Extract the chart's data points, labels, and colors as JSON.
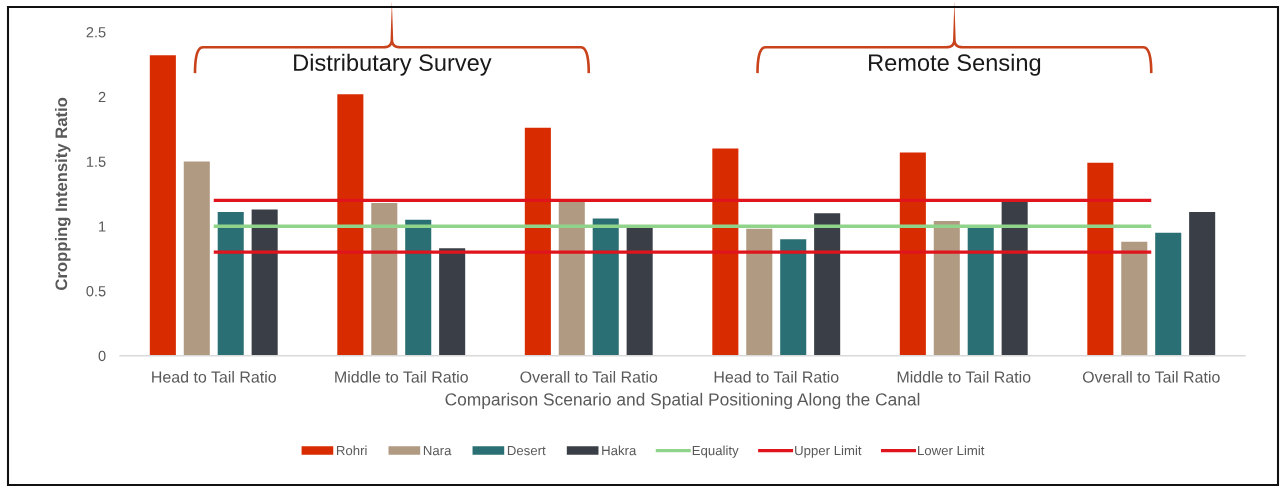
{
  "chart_data": {
    "type": "bar",
    "categories": [
      "Head to Tail Ratio",
      "Middle to Tail Ratio",
      "Overall to Tail Ratio",
      "Head to Tail Ratio",
      "Middle to Tail Ratio",
      "Overall to Tail Ratio"
    ],
    "series": [
      {
        "name": "Rohri",
        "color": "#d92b00",
        "values": [
          2.32,
          2.02,
          1.76,
          1.6,
          1.57,
          1.49
        ]
      },
      {
        "name": "Nara",
        "color": "#b09a82",
        "values": [
          1.5,
          1.18,
          1.19,
          0.98,
          1.04,
          0.88
        ]
      },
      {
        "name": "Desert",
        "color": "#2a6f73",
        "values": [
          1.11,
          1.05,
          1.06,
          0.9,
          0.99,
          0.95
        ]
      },
      {
        "name": "Hakra",
        "color": "#3a3f47",
        "values": [
          1.13,
          0.83,
          0.99,
          1.1,
          1.2,
          1.11
        ]
      },
      {
        "name": "Equality",
        "type": "line",
        "color": "#8fd48a",
        "values": [
          1,
          1,
          1,
          1,
          1,
          1
        ]
      },
      {
        "name": "Upper Limit",
        "type": "line",
        "color": "#e0141c",
        "values": [
          1.2,
          1.2,
          1.2,
          1.2,
          1.2,
          1.2
        ]
      },
      {
        "name": "Lower Limit",
        "type": "line",
        "color": "#e0141c",
        "values": [
          0.8,
          0.8,
          0.8,
          0.8,
          0.8,
          0.8
        ]
      }
    ],
    "xlabel": "Comparison Scenario and Spatial Positioning Along the Canal",
    "ylabel": "Cropping Intensity Ratio",
    "ylim": [
      0,
      2.5
    ],
    "yticks": [
      0,
      0.5,
      1,
      1.5,
      2,
      2.5
    ],
    "annotations": [
      "Distributary Survey",
      "Remote Sensing"
    ],
    "legend": "bottom"
  }
}
